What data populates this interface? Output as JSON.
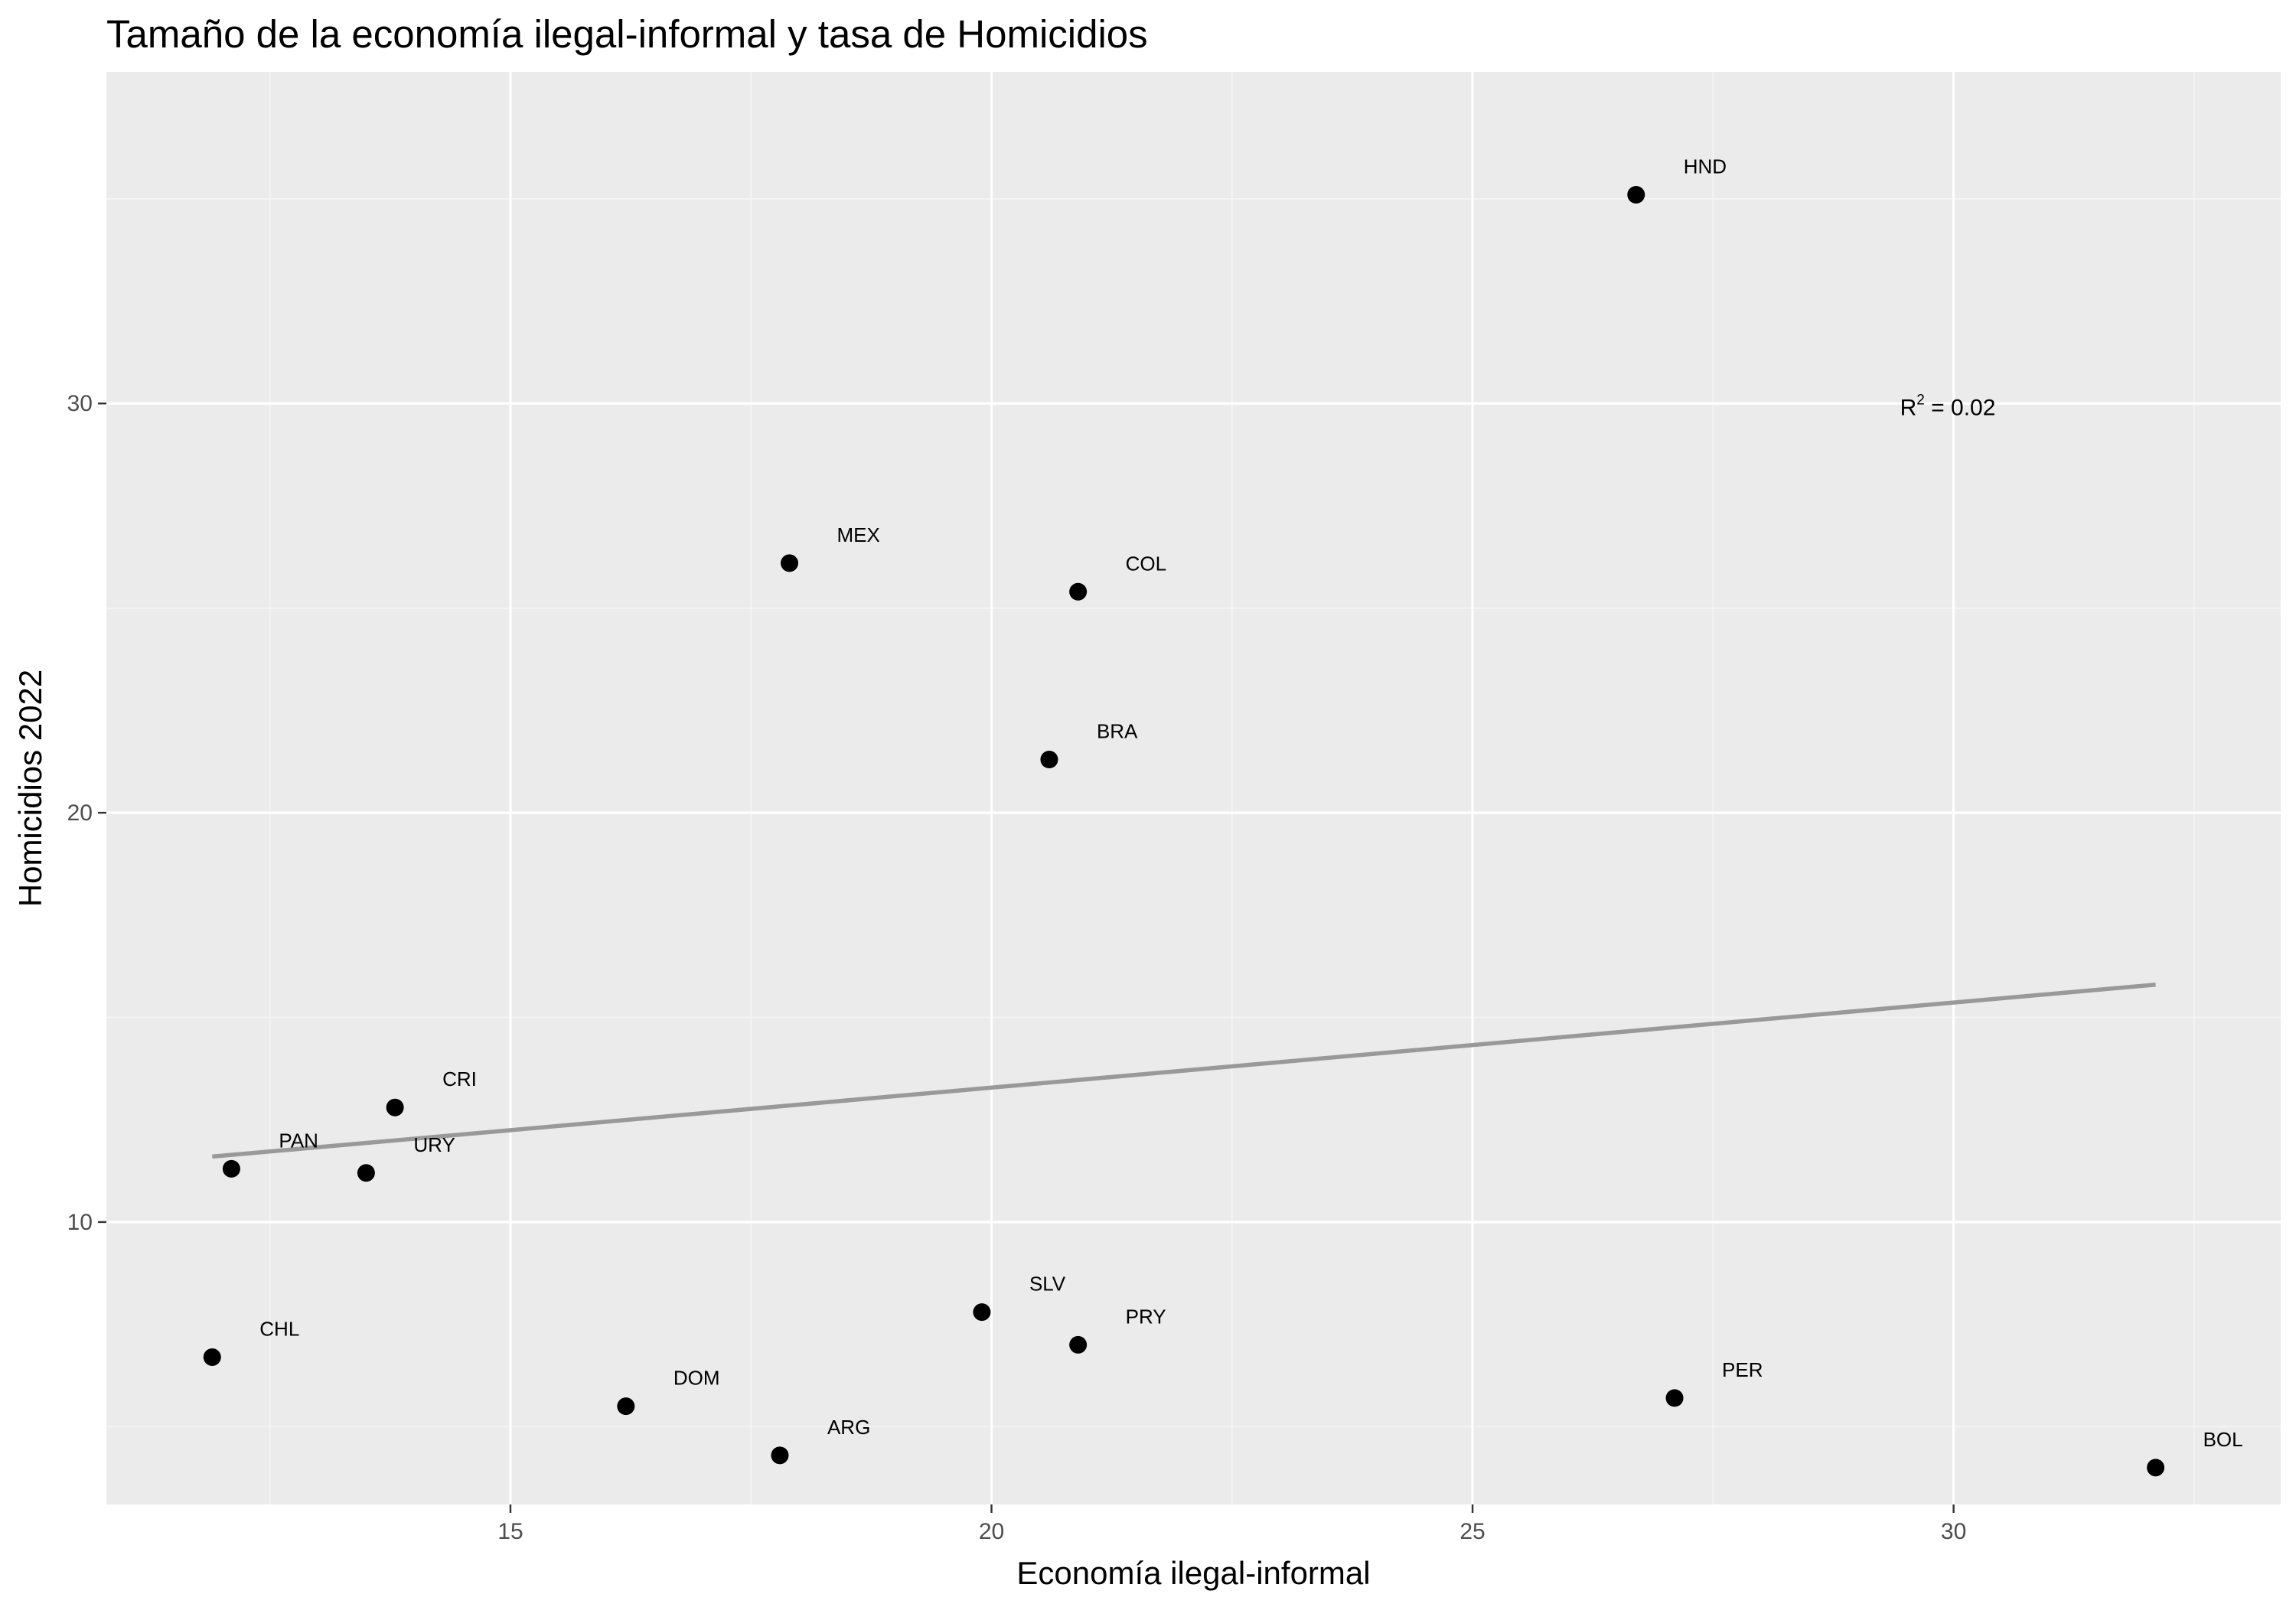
{
  "chart_data": {
    "type": "scatter",
    "title": "Tamaño de la economía ilegal-informal y tasa de Homicidios",
    "xlabel": "Economía ilegal-informal",
    "ylabel": "Homicidios 2022",
    "xlim": [
      10.8,
      33.4
    ],
    "ylim": [
      3.1,
      38.1
    ],
    "xticks": [
      15,
      20,
      25,
      30
    ],
    "yticks": [
      10,
      20,
      30
    ],
    "x_minor_ticks": [
      12.5,
      17.5,
      22.5,
      27.5,
      32.5
    ],
    "y_minor_ticks": [
      5,
      15,
      25,
      35
    ],
    "grid": true,
    "legend": "none",
    "colors": {
      "panel_background": "#ebebeb",
      "grid_major": "#ffffff",
      "grid_minor": "#f5f5f5",
      "points": "#000000",
      "trend_line": "#999999"
    },
    "points": [
      {
        "label": "HND",
        "x": 26.7,
        "y": 35.1
      },
      {
        "label": "MEX",
        "x": 17.9,
        "y": 26.1
      },
      {
        "label": "COL",
        "x": 20.9,
        "y": 25.4
      },
      {
        "label": "BRA",
        "x": 20.6,
        "y": 21.3
      },
      {
        "label": "CRI",
        "x": 13.8,
        "y": 12.8
      },
      {
        "label": "PAN",
        "x": 12.1,
        "y": 11.3
      },
      {
        "label": "URY",
        "x": 13.5,
        "y": 11.2
      },
      {
        "label": "CHL",
        "x": 11.9,
        "y": 6.7
      },
      {
        "label": "SLV",
        "x": 19.9,
        "y": 7.8
      },
      {
        "label": "PRY",
        "x": 20.9,
        "y": 7.0
      },
      {
        "label": "DOM",
        "x": 16.2,
        "y": 5.5
      },
      {
        "label": "ARG",
        "x": 17.8,
        "y": 4.3
      },
      {
        "label": "PER",
        "x": 27.1,
        "y": 5.7
      },
      {
        "label": "BOL",
        "x": 32.1,
        "y": 4.0
      }
    ],
    "trend_line": {
      "x_start": 11.9,
      "y_start": 11.6,
      "x_end": 32.1,
      "y_end": 15.8
    },
    "annotation": {
      "base": "R",
      "sup": "2",
      "rest": " = 0.02",
      "x": 30.0,
      "y": 29.9
    }
  }
}
